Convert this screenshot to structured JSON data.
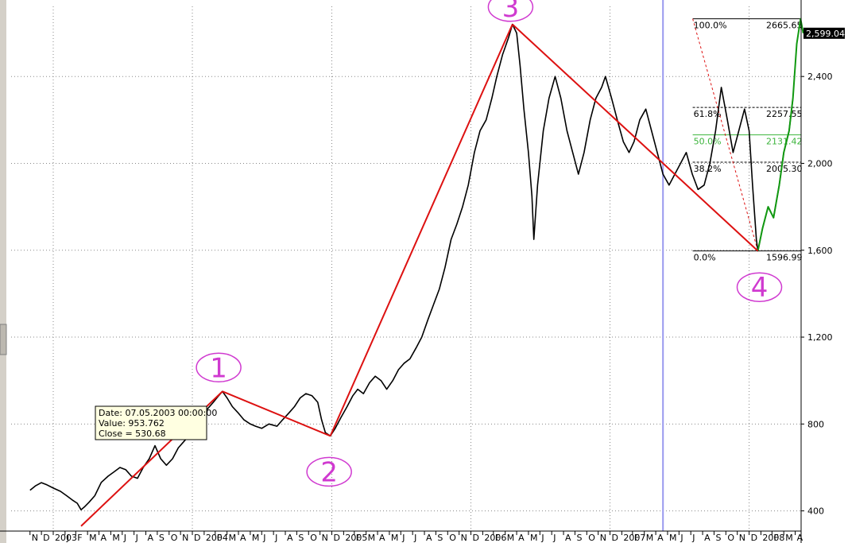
{
  "chart_data": {
    "type": "line",
    "title": "",
    "ylim": [
      330,
      2790
    ],
    "y_ticks": [
      "400",
      "800",
      "1,200",
      "1,600",
      "2,000",
      "2,400"
    ],
    "y_tick_values": [
      400,
      800,
      1200,
      1600,
      2000,
      2400
    ],
    "x_tick_labels": [
      "N",
      "D",
      "2003",
      "J",
      "F",
      "M",
      "A",
      "M",
      "J",
      "J",
      "A",
      "S",
      "O",
      "N",
      "D",
      "2004",
      "F",
      "M",
      "A",
      "M",
      "J",
      "J",
      "A",
      "S",
      "O",
      "N",
      "D",
      "2005",
      "F",
      "M",
      "A",
      "M",
      "J",
      "J",
      "A",
      "S",
      "O",
      "N",
      "D",
      "2006",
      "F",
      "M",
      "A",
      "M",
      "J",
      "J",
      "A",
      "S",
      "O",
      "N",
      "D",
      "2007",
      "F",
      "M",
      "A",
      "M",
      "J",
      "J",
      "A",
      "S",
      "O",
      "N",
      "D",
      "2008",
      "F",
      "M",
      "A",
      "M"
    ],
    "last_price_label": "2,599.04",
    "series": [
      {
        "values": [
          [
            "2002-11-01",
            495
          ],
          [
            "2002-11-15",
            515
          ],
          [
            "2002-12-01",
            530
          ],
          [
            "2002-12-15",
            520
          ],
          [
            "2003-01-01",
            505
          ],
          [
            "2003-01-20",
            490
          ],
          [
            "2003-02-05",
            470
          ],
          [
            "2003-02-20",
            450
          ],
          [
            "2003-03-05",
            435
          ],
          [
            "2003-03-15",
            405
          ],
          [
            "2003-03-25",
            420
          ],
          [
            "2003-04-05",
            440
          ],
          [
            "2003-04-20",
            470
          ],
          [
            "2003-05-07",
            531
          ],
          [
            "2003-05-25",
            560
          ],
          [
            "2003-06-10",
            580
          ],
          [
            "2003-06-25",
            600
          ],
          [
            "2003-07-10",
            590
          ],
          [
            "2003-07-25",
            560
          ],
          [
            "2003-08-10",
            550
          ],
          [
            "2003-08-25",
            600
          ],
          [
            "2003-09-10",
            640
          ],
          [
            "2003-09-25",
            700
          ],
          [
            "2003-10-10",
            640
          ],
          [
            "2003-10-25",
            610
          ],
          [
            "2003-11-10",
            640
          ],
          [
            "2003-11-25",
            690
          ],
          [
            "2003-12-10",
            720
          ],
          [
            "2003-12-25",
            750
          ],
          [
            "2004-01-10",
            800
          ],
          [
            "2004-01-25",
            830
          ],
          [
            "2004-02-10",
            870
          ],
          [
            "2004-02-25",
            900
          ],
          [
            "2004-03-10",
            930
          ],
          [
            "2004-03-20",
            950
          ],
          [
            "2004-04-01",
            920
          ],
          [
            "2004-04-15",
            880
          ],
          [
            "2004-05-01",
            850
          ],
          [
            "2004-05-15",
            820
          ],
          [
            "2004-06-01",
            800
          ],
          [
            "2004-06-15",
            790
          ],
          [
            "2004-07-01",
            780
          ],
          [
            "2004-07-20",
            800
          ],
          [
            "2004-08-10",
            790
          ],
          [
            "2004-08-25",
            820
          ],
          [
            "2004-09-10",
            850
          ],
          [
            "2004-09-25",
            880
          ],
          [
            "2004-10-10",
            920
          ],
          [
            "2004-10-25",
            940
          ],
          [
            "2004-11-10",
            930
          ],
          [
            "2004-11-25",
            900
          ],
          [
            "2004-12-05",
            820
          ],
          [
            "2004-12-15",
            760
          ],
          [
            "2004-12-28",
            745
          ],
          [
            "2005-01-10",
            780
          ],
          [
            "2005-01-25",
            830
          ],
          [
            "2005-02-10",
            880
          ],
          [
            "2005-02-25",
            930
          ],
          [
            "2005-03-10",
            960
          ],
          [
            "2005-03-25",
            940
          ],
          [
            "2005-04-10",
            990
          ],
          [
            "2005-04-25",
            1020
          ],
          [
            "2005-05-10",
            1000
          ],
          [
            "2005-05-25",
            960
          ],
          [
            "2005-06-10",
            1000
          ],
          [
            "2005-06-25",
            1050
          ],
          [
            "2005-07-10",
            1080
          ],
          [
            "2005-07-25",
            1100
          ],
          [
            "2005-08-10",
            1150
          ],
          [
            "2005-08-25",
            1200
          ],
          [
            "2005-09-10",
            1280
          ],
          [
            "2005-09-25",
            1350
          ],
          [
            "2005-10-10",
            1420
          ],
          [
            "2005-10-25",
            1520
          ],
          [
            "2005-11-10",
            1650
          ],
          [
            "2005-11-25",
            1720
          ],
          [
            "2005-12-10",
            1800
          ],
          [
            "2005-12-25",
            1900
          ],
          [
            "2006-01-10",
            2050
          ],
          [
            "2006-01-25",
            2150
          ],
          [
            "2006-02-10",
            2200
          ],
          [
            "2006-02-25",
            2300
          ],
          [
            "2006-03-10",
            2400
          ],
          [
            "2006-03-25",
            2500
          ],
          [
            "2006-04-10",
            2580
          ],
          [
            "2006-04-20",
            2640
          ],
          [
            "2006-05-01",
            2600
          ],
          [
            "2006-05-10",
            2450
          ],
          [
            "2006-05-20",
            2250
          ],
          [
            "2006-06-01",
            2050
          ],
          [
            "2006-06-10",
            1850
          ],
          [
            "2006-06-15",
            1650
          ],
          [
            "2006-06-25",
            1900
          ],
          [
            "2006-07-10",
            2150
          ],
          [
            "2006-07-25",
            2300
          ],
          [
            "2006-08-10",
            2400
          ],
          [
            "2006-08-25",
            2300
          ],
          [
            "2006-09-10",
            2150
          ],
          [
            "2006-09-25",
            2050
          ],
          [
            "2006-10-10",
            1950
          ],
          [
            "2006-10-25",
            2050
          ],
          [
            "2006-11-10",
            2200
          ],
          [
            "2006-11-25",
            2300
          ],
          [
            "2006-12-10",
            2350
          ],
          [
            "2006-12-20",
            2400
          ],
          [
            "2007-01-05",
            2300
          ],
          [
            "2007-01-20",
            2200
          ],
          [
            "2007-02-05",
            2100
          ],
          [
            "2007-02-20",
            2050
          ],
          [
            "2007-03-05",
            2100
          ],
          [
            "2007-03-20",
            2200
          ],
          [
            "2007-04-05",
            2250
          ],
          [
            "2007-04-20",
            2150
          ],
          [
            "2007-05-05",
            2050
          ],
          [
            "2007-05-20",
            1950
          ],
          [
            "2007-06-05",
            1900
          ],
          [
            "2007-06-20",
            1950
          ],
          [
            "2007-07-05",
            2000
          ],
          [
            "2007-07-20",
            2050
          ],
          [
            "2007-08-05",
            1950
          ],
          [
            "2007-08-20",
            1880
          ],
          [
            "2007-09-05",
            1900
          ],
          [
            "2007-09-20",
            2000
          ],
          [
            "2007-10-05",
            2150
          ],
          [
            "2007-10-20",
            2350
          ],
          [
            "2007-11-05",
            2200
          ],
          [
            "2007-11-20",
            2050
          ],
          [
            "2007-12-05",
            2150
          ],
          [
            "2007-12-20",
            2250
          ],
          [
            "2008-01-01",
            2150
          ],
          [
            "2008-01-10",
            1900
          ],
          [
            "2008-01-20",
            1650
          ],
          [
            "2008-01-24",
            1597
          ],
          [
            "2008-02-05",
            1700
          ],
          [
            "2008-02-20",
            1800
          ],
          [
            "2008-03-05",
            1750
          ],
          [
            "2008-03-20",
            1900
          ],
          [
            "2008-04-01",
            2050
          ],
          [
            "2008-04-15",
            2150
          ],
          [
            "2008-04-25",
            2300
          ],
          [
            "2008-05-05",
            2550
          ],
          [
            "2008-05-15",
            2665
          ],
          [
            "2008-05-22",
            2599
          ]
        ]
      }
    ],
    "trend_lines": [
      {
        "from": [
          "2003-03-15",
          330
        ],
        "to": [
          "2004-03-20",
          950
        ]
      },
      {
        "from": [
          "2004-03-20",
          950
        ],
        "to": [
          "2004-12-28",
          745
        ]
      },
      {
        "from": [
          "2004-12-28",
          745
        ],
        "to": [
          "2006-04-20",
          2640
        ]
      },
      {
        "from": [
          "2006-04-20",
          2640
        ],
        "to": [
          "2008-01-24",
          1597
        ]
      }
    ],
    "fibonacci": {
      "start_date": "2008-01-24",
      "levels": [
        {
          "pct": "100.0%",
          "price_label": "2665.65",
          "value": 2665.65
        },
        {
          "pct": "61.8%",
          "price_label": "2257.55",
          "value": 2257.55
        },
        {
          "pct": "50.0%",
          "price_label": "2131.42",
          "value": 2131.42
        },
        {
          "pct": "38.2%",
          "price_label": "2005.30",
          "value": 2005.3
        },
        {
          "pct": "0.0%",
          "price_label": "1596.99",
          "value": 1596.99
        }
      ]
    },
    "vertical_marker_date": "2007-05-20",
    "annotations": [
      {
        "label": "1",
        "date": "2004-03-10",
        "value": 1060
      },
      {
        "label": "2",
        "date": "2004-12-25",
        "value": 580
      },
      {
        "label": "3",
        "date": "2006-04-15",
        "value": 2720
      },
      {
        "label": "4",
        "date": "2008-01-28",
        "value": 1430
      }
    ],
    "tooltip": {
      "date_line": "Date: 07.05.2003 00:00:00",
      "value_line": "Value: 953.762",
      "close_line": "Close = 530.68"
    },
    "colors": {
      "price_line": "#000000",
      "trend_line": "#dd1111",
      "recent_line": "#119911",
      "fib_line": "#000000",
      "fib_mid": "#3cb43c",
      "marker": "#9999ee",
      "grid": "#888888",
      "annotation": "#d03ad0",
      "price_label_bg": "#000000",
      "tooltip_bg": "#ffffe1"
    }
  }
}
